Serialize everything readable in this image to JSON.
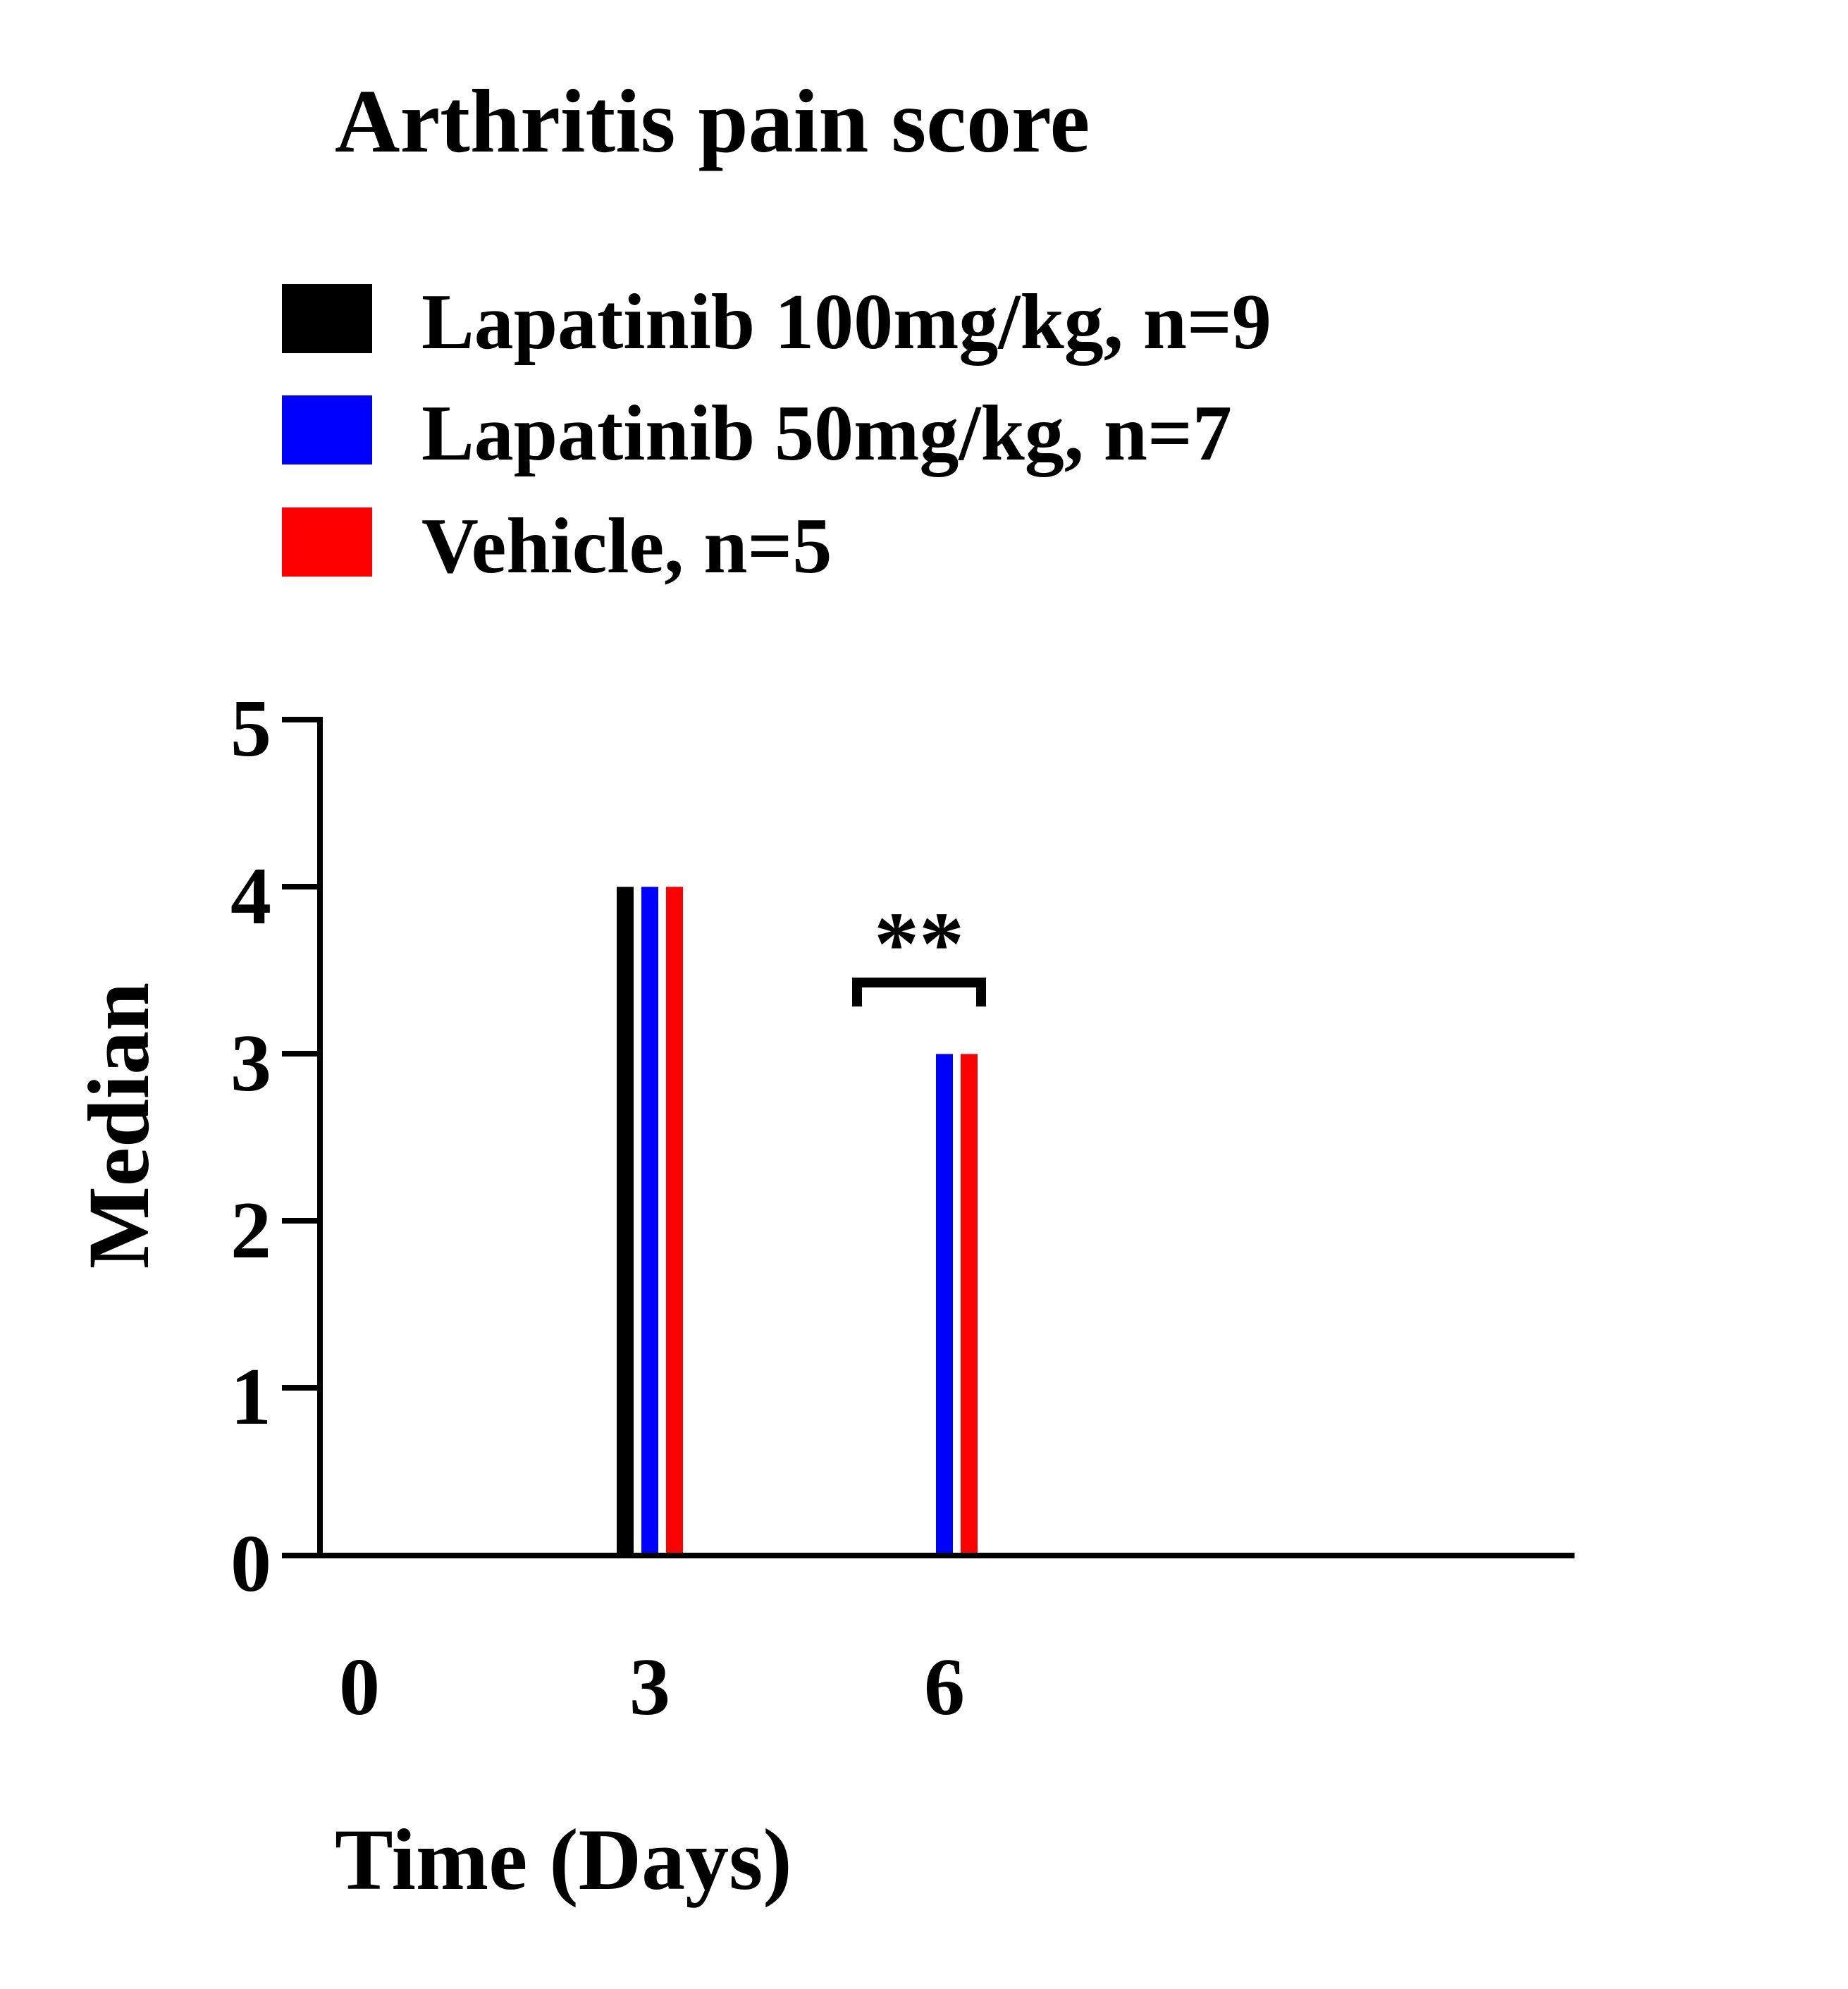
{
  "chart_data": {
    "type": "bar",
    "title": "Arthritis pain score",
    "xlabel": "Time (Days)",
    "ylabel": "Median",
    "categories": [
      "0",
      "3",
      "6"
    ],
    "series": [
      {
        "name": "Lapatinib 100mg/kg, n=9",
        "color": "#000000",
        "values": [
          0,
          4,
          0
        ]
      },
      {
        "name": "Lapatinib 50mg/kg, n=7",
        "color": "#0000ff",
        "values": [
          0,
          4,
          3
        ]
      },
      {
        "name": "Vehicle, n=5",
        "color": "#ff0000",
        "values": [
          0,
          4,
          3
        ]
      }
    ],
    "ylim": [
      0,
      5
    ],
    "yticks": [
      "0",
      "1",
      "2",
      "3",
      "4",
      "5"
    ],
    "grid": false,
    "legend_position": "top-left",
    "annotations": [
      {
        "text": "**",
        "category": "6",
        "type": "significance-bracket"
      }
    ]
  }
}
